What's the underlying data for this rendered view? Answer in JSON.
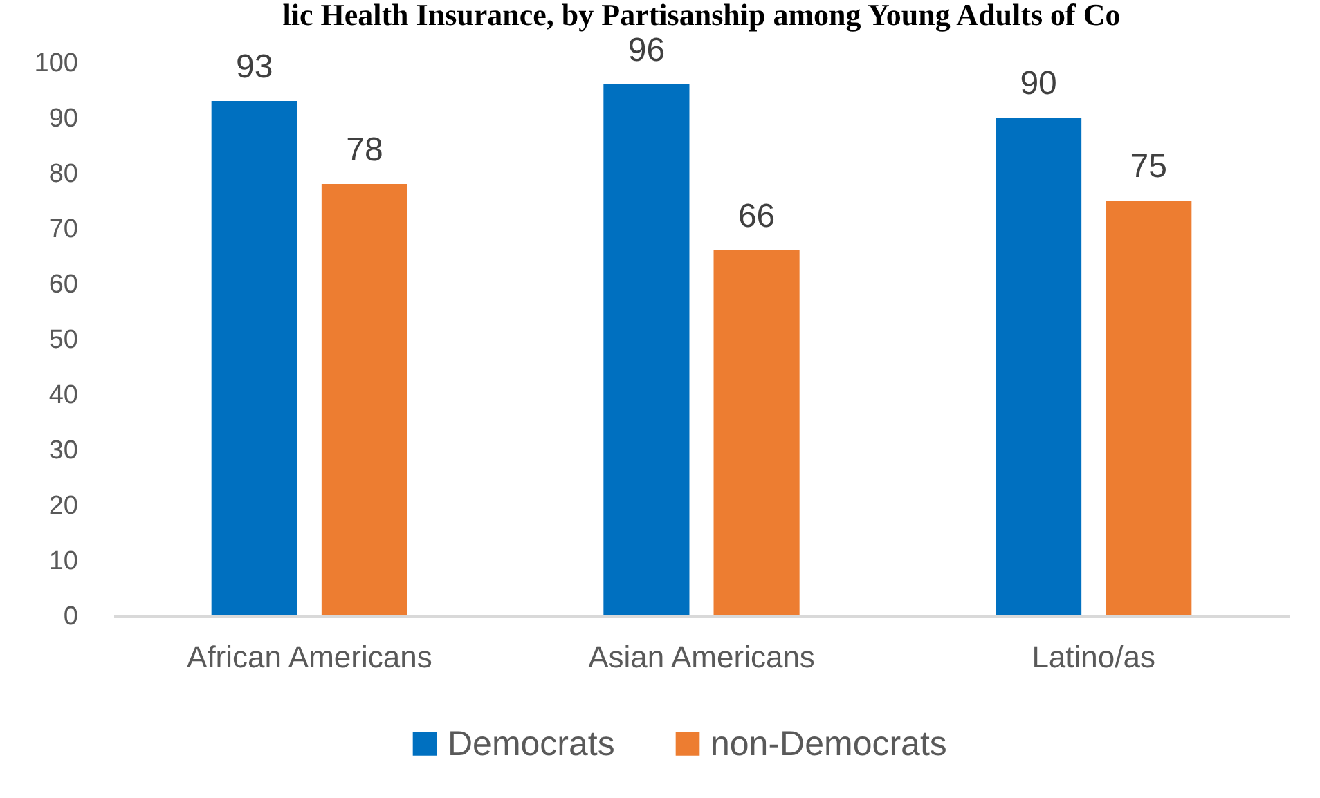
{
  "chart_data": {
    "type": "bar",
    "title": "lic Health Insurance, by Partisanship among Young Adults of Co",
    "categories": [
      "African Americans",
      "Asian Americans",
      "Latino/as"
    ],
    "series": [
      {
        "name": "Democrats",
        "color": "#0070c0",
        "values": [
          93,
          96,
          90
        ]
      },
      {
        "name": "non-Democrats",
        "color": "#ed7d31",
        "values": [
          78,
          66,
          75
        ]
      }
    ],
    "ylim": [
      0,
      100
    ],
    "yticks": [
      0,
      10,
      20,
      30,
      40,
      50,
      60,
      70,
      80,
      90,
      100
    ],
    "grid": false,
    "legend": "bottom",
    "data_labels": true
  }
}
